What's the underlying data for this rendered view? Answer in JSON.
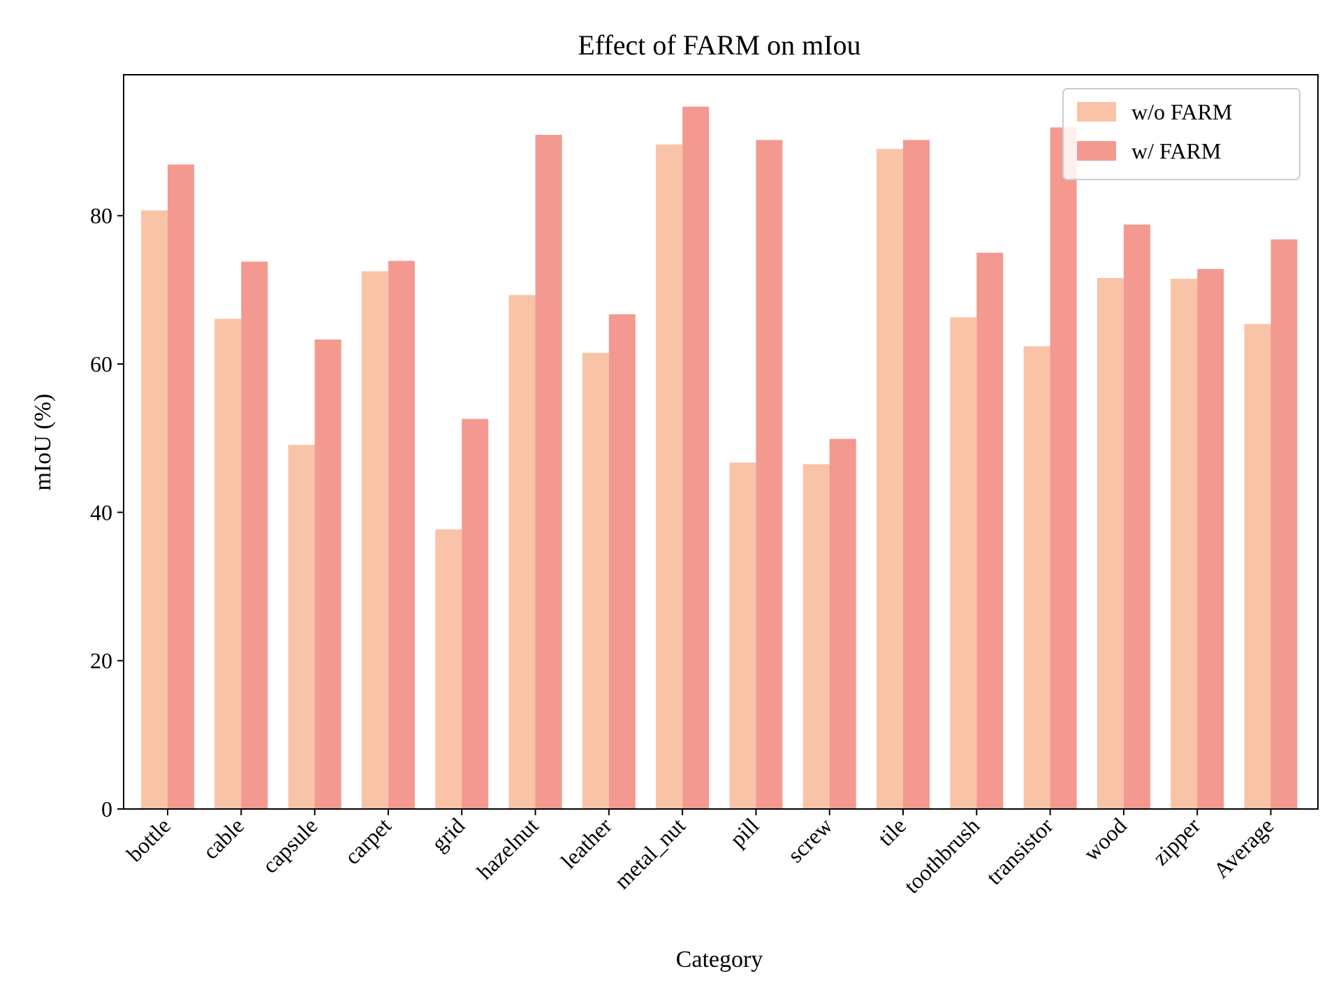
{
  "chart_data": {
    "type": "bar",
    "title": "Effect of FARM on mIou",
    "xlabel": "Category",
    "ylabel": "mIoU (%)",
    "categories": [
      "bottle",
      "cable",
      "capsule",
      "carpet",
      "grid",
      "hazelnut",
      "leather",
      "metal_nut",
      "pill",
      "screw",
      "tile",
      "toothbrush",
      "transistor",
      "wood",
      "zipper",
      "Average"
    ],
    "series": [
      {
        "name": "w/o FARM",
        "color": "#f9c3a8",
        "values": [
          80.7,
          66.1,
          49.1,
          72.5,
          37.7,
          69.3,
          61.5,
          89.6,
          46.7,
          46.5,
          89.0,
          66.3,
          62.4,
          71.6,
          71.5,
          65.4
        ]
      },
      {
        "name": "w/ FARM",
        "color": "#f3998f",
        "values": [
          86.9,
          73.8,
          63.3,
          73.9,
          52.6,
          90.9,
          66.7,
          94.7,
          90.2,
          49.9,
          90.2,
          75.0,
          91.9,
          78.8,
          72.8,
          76.8
        ]
      }
    ],
    "ylim": [
      0,
      99
    ],
    "yticks": [
      0,
      20,
      40,
      60,
      80
    ],
    "grid": false,
    "legend_position": "top-right"
  }
}
